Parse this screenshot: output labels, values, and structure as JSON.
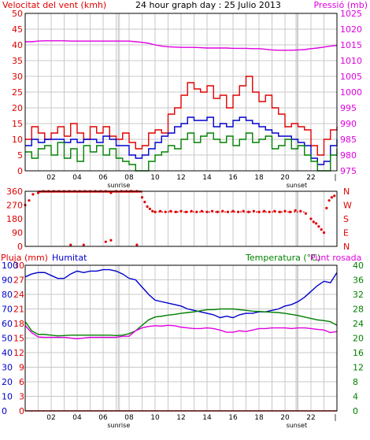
{
  "header": {
    "left_label": "Velocitat del vent (kmh)",
    "center_label": "24 hour graph day : 25 Julio 2013",
    "right_label": "Pressió (mb)"
  },
  "colors": {
    "red": "#e00000",
    "magenta": "#e000e0",
    "blue": "#0000cc",
    "green": "#008000",
    "grid": "#c8c8c8",
    "sunband": "#d8d8d8"
  },
  "x_axis": {
    "ticks": [
      "02",
      "04",
      "06",
      "08",
      "10",
      "12",
      "14",
      "16",
      "18",
      "20",
      "22"
    ],
    "end_tick": "|",
    "sunrise_label": "sunrise",
    "sunset_label": "sunset",
    "sunrise_hour": 7.2,
    "sunset_hour": 20.9
  },
  "chart_data": [
    {
      "type": "line",
      "name": "wind-pressure",
      "x_hours": [
        0,
        0.5,
        1,
        1.5,
        2,
        2.5,
        3,
        3.5,
        4,
        4.5,
        5,
        5.5,
        6,
        6.5,
        7,
        7.5,
        8,
        8.5,
        9,
        9.5,
        10,
        10.5,
        11,
        11.5,
        12,
        12.5,
        13,
        13.5,
        14,
        14.5,
        15,
        15.5,
        16,
        16.5,
        17,
        17.5,
        18,
        18.5,
        19,
        19.5,
        20,
        20.5,
        21,
        21.5,
        22,
        22.5,
        23,
        23.5,
        24
      ],
      "left_axis": {
        "label": "Velocitat del vent (kmh)",
        "ticks": [
          0,
          5,
          10,
          15,
          20,
          25,
          30,
          35,
          40,
          45,
          50
        ],
        "ylim": [
          0,
          50
        ]
      },
      "right_axis": {
        "label": "Pressió (mb)",
        "ticks": [
          975,
          980,
          985,
          990,
          995,
          1000,
          1005,
          1010,
          1015,
          1020,
          1025
        ],
        "ylim": [
          975,
          1025
        ]
      },
      "series": [
        {
          "name": "Gust",
          "axis": "left",
          "color": "#e00000",
          "values": [
            10,
            14,
            12,
            10,
            12,
            14,
            11,
            15,
            12,
            10,
            14,
            12,
            14,
            11,
            10,
            12,
            9,
            7,
            8,
            12,
            13,
            12,
            18,
            20,
            24,
            28,
            26,
            25,
            27,
            23,
            24,
            20,
            24,
            27,
            30,
            25,
            22,
            24,
            20,
            18,
            14,
            15,
            14,
            13,
            8,
            5,
            10,
            13,
            14
          ]
        },
        {
          "name": "Mitjana",
          "axis": "left",
          "color": "#0000cc",
          "values": [
            8,
            10,
            9,
            10,
            10,
            10,
            9,
            10,
            9,
            10,
            10,
            9,
            11,
            10,
            8,
            8,
            5,
            4,
            5,
            7,
            9,
            11,
            12,
            14,
            15,
            17,
            16,
            16,
            17,
            14,
            15,
            14,
            16,
            17,
            16,
            15,
            14,
            13,
            12,
            11,
            11,
            10,
            9,
            8,
            4,
            2,
            3,
            8,
            10
          ]
        },
        {
          "name": "Minim",
          "axis": "left",
          "color": "#008000",
          "values": [
            6,
            4,
            7,
            8,
            5,
            9,
            4,
            7,
            3,
            8,
            6,
            8,
            5,
            7,
            4,
            3,
            2,
            0,
            0,
            3,
            5,
            6,
            8,
            7,
            10,
            12,
            9,
            11,
            12,
            10,
            9,
            11,
            8,
            10,
            12,
            9,
            10,
            11,
            7,
            8,
            10,
            7,
            8,
            5,
            3,
            0,
            0,
            5,
            7
          ]
        },
        {
          "name": "Pressió",
          "axis": "right",
          "color": "#e000e0",
          "values": [
            1016,
            1016,
            1016.2,
            1016.3,
            1016.3,
            1016.3,
            1016.3,
            1016.2,
            1016.2,
            1016.2,
            1016.2,
            1016.2,
            1016.2,
            1016.2,
            1016.2,
            1016.2,
            1016.2,
            1016,
            1015.8,
            1015.5,
            1015,
            1014.6,
            1014.4,
            1014.3,
            1014.2,
            1014.2,
            1014.2,
            1014.1,
            1014,
            1014,
            1014,
            1014,
            1013.9,
            1013.9,
            1013.9,
            1013.8,
            1013.8,
            1013.6,
            1013.4,
            1013.3,
            1013.3,
            1013.3,
            1013.4,
            1013.5,
            1013.8,
            1014,
            1014.3,
            1014.6,
            1014.8
          ]
        }
      ]
    },
    {
      "type": "scatter",
      "name": "wind-direction",
      "left_axis": {
        "ticks": [
          0,
          90,
          180,
          270,
          360
        ],
        "ylim": [
          0,
          360
        ]
      },
      "right_axis": {
        "ticks": [
          "N",
          "E",
          "S",
          "W",
          "N"
        ]
      },
      "color": "#e00000",
      "x_hours": [
        0,
        0.3,
        0.6,
        1,
        1.4,
        1.8,
        2.2,
        2.6,
        3,
        3.4,
        3.8,
        4.2,
        4.6,
        5,
        5.4,
        5.8,
        6.2,
        6.6,
        7,
        7.4,
        7.8,
        8.2,
        8.6,
        9,
        9.2,
        9.4,
        9.6,
        9.8,
        10,
        10.4,
        10.8,
        11.2,
        11.6,
        12,
        12.4,
        12.8,
        13.2,
        13.6,
        14,
        14.4,
        14.8,
        15.2,
        15.6,
        16,
        16.4,
        16.8,
        17.2,
        17.6,
        18,
        18.4,
        18.8,
        19.2,
        19.6,
        20,
        20.4,
        20.8,
        21.2,
        21.6,
        22,
        22.2,
        22.4,
        22.6,
        22.8,
        23,
        23.2,
        23.4,
        23.6,
        23.8,
        3.5,
        4.5,
        6.2,
        6.6,
        8.1,
        8.6
      ],
      "values": [
        270,
        300,
        340,
        350,
        360,
        360,
        360,
        360,
        360,
        360,
        360,
        360,
        360,
        360,
        360,
        360,
        360,
        350,
        360,
        360,
        360,
        360,
        360,
        320,
        290,
        260,
        245,
        230,
        225,
        230,
        225,
        230,
        225,
        230,
        225,
        230,
        225,
        230,
        225,
        230,
        225,
        230,
        225,
        230,
        225,
        230,
        225,
        230,
        225,
        230,
        225,
        230,
        225,
        230,
        225,
        235,
        230,
        215,
        180,
        160,
        150,
        130,
        110,
        90,
        250,
        300,
        320,
        330,
        10,
        10,
        30,
        40,
        360,
        10
      ]
    },
    {
      "type": "line",
      "name": "humidity-temperature",
      "x_hours": [
        0,
        0.5,
        1,
        1.5,
        2,
        2.5,
        3,
        3.5,
        4,
        4.5,
        5,
        5.5,
        6,
        6.5,
        7,
        7.5,
        8,
        8.5,
        9,
        9.5,
        10,
        10.5,
        11,
        11.5,
        12,
        12.5,
        13,
        13.5,
        14,
        14.5,
        15,
        15.5,
        16,
        16.5,
        17,
        17.5,
        18,
        18.5,
        19,
        19.5,
        20,
        20.5,
        21,
        21.5,
        22,
        22.5,
        23,
        23.5,
        24
      ],
      "left_axis": {
        "label": "Pluja (mm)",
        "ticks": [
          0,
          3,
          6,
          9,
          12,
          15,
          18,
          21,
          24,
          27,
          30
        ],
        "ylim": [
          0,
          30
        ]
      },
      "humidity_axis": {
        "label": "Humitat",
        "ticks": [
          0,
          10,
          20,
          30,
          40,
          50,
          60,
          70,
          80,
          90,
          100
        ],
        "ylim": [
          0,
          100
        ]
      },
      "right_axis": {
        "label": "Temperatura (°C)",
        "ticks": [
          0,
          4,
          8,
          12,
          16,
          20,
          24,
          28,
          32,
          36,
          40
        ],
        "ylim": [
          0,
          40
        ]
      },
      "extra_label": "Punt rosada",
      "series": [
        {
          "name": "Humitat",
          "axis": "humidity",
          "color": "#0000cc",
          "values": [
            92,
            94,
            95,
            95,
            93,
            91,
            91,
            94,
            96,
            95,
            96,
            96,
            97,
            97,
            96,
            94,
            91,
            90,
            85,
            80,
            76,
            75,
            74,
            73,
            72,
            70,
            69,
            68,
            67,
            66,
            64,
            65,
            64,
            66,
            67,
            67,
            68,
            68,
            69,
            70,
            72,
            73,
            75,
            78,
            82,
            86,
            89,
            88,
            95
          ]
        },
        {
          "name": "Temperatura",
          "axis": "right",
          "color": "#008000",
          "values": [
            24.5,
            22,
            21,
            21,
            20.8,
            20.6,
            20.7,
            20.8,
            20.8,
            20.8,
            20.8,
            20.8,
            20.8,
            20.8,
            20.7,
            20.8,
            21.2,
            22,
            23.5,
            25,
            25.8,
            26,
            26.3,
            26.5,
            26.8,
            27,
            27.2,
            27.5,
            27.8,
            27.8,
            28,
            28,
            28,
            27.8,
            27.6,
            27.4,
            27.3,
            27.2,
            27.1,
            27,
            26.8,
            26.5,
            26.2,
            25.8,
            25.4,
            25,
            24.8,
            24.5,
            23.5
          ]
        },
        {
          "name": "Punt rosada",
          "axis": "right",
          "color": "#e000e0",
          "values": [
            23.4,
            21.5,
            20.3,
            20.2,
            20.2,
            20.2,
            20.2,
            20,
            19.8,
            20,
            20.2,
            20.2,
            20.2,
            20.2,
            20.2,
            20.5,
            20.5,
            22,
            22.8,
            23.2,
            23.4,
            23.3,
            23.5,
            23.4,
            23,
            22.8,
            22.6,
            22.6,
            22.8,
            22.6,
            22.2,
            21.6,
            21.6,
            22,
            21.8,
            22.2,
            22.6,
            22.6,
            22.8,
            22.8,
            22.8,
            22.6,
            22.8,
            22.8,
            22.6,
            22.4,
            22.2,
            21.5,
            21.8
          ]
        },
        {
          "name": "Pluja",
          "axis": "left",
          "color": "#e00000",
          "values": [
            0,
            0,
            0,
            0,
            0,
            0,
            0,
            0,
            0,
            0,
            0,
            0,
            0,
            0,
            0,
            0,
            0,
            0,
            0,
            0,
            0,
            0,
            0,
            0,
            0,
            0,
            0,
            0,
            0,
            0,
            0,
            0,
            0,
            0,
            0,
            0,
            0,
            0,
            0,
            0,
            0,
            0,
            0,
            0,
            0,
            0,
            0,
            0,
            0
          ]
        }
      ]
    }
  ],
  "bottom": {
    "humidity_label": "Humitat",
    "rain_label": "Pluja (mm)",
    "temp_label": "Temperatura (°C)",
    "dew_label": "Punt rosada"
  }
}
